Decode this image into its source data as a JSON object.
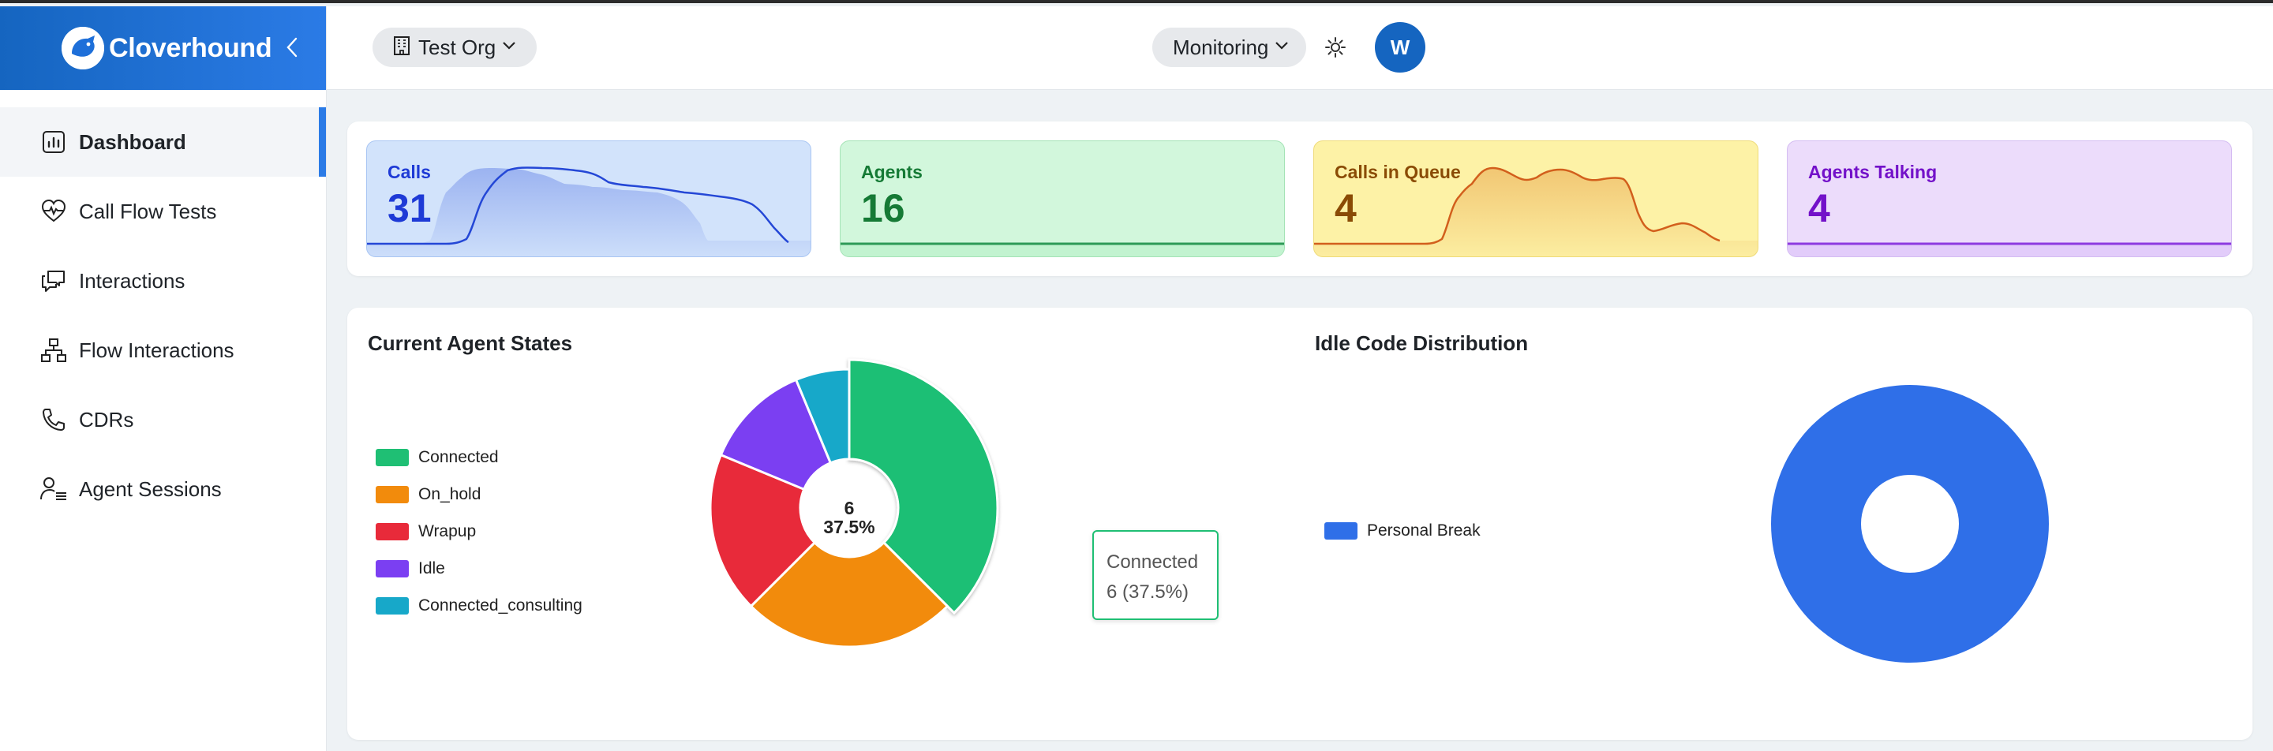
{
  "brand": {
    "name": "Cloverhound"
  },
  "sidebar": {
    "items": [
      {
        "label": "Dashboard",
        "icon": "bar-chart-icon",
        "active": true
      },
      {
        "label": "Call Flow Tests",
        "icon": "heart-pulse-icon"
      },
      {
        "label": "Interactions",
        "icon": "chat-bubbles-icon"
      },
      {
        "label": "Flow Interactions",
        "icon": "sitemap-icon"
      },
      {
        "label": "CDRs",
        "icon": "phone-icon"
      },
      {
        "label": "Agent Sessions",
        "icon": "user-list-icon"
      }
    ]
  },
  "header": {
    "org": {
      "label": "Test Org",
      "icon": "building-icon"
    },
    "view": {
      "label": "Monitoring"
    },
    "theme_icon": "sun-icon",
    "avatar": "W"
  },
  "stats": [
    {
      "label": "Calls",
      "value": "31",
      "color": "#1e3ad6",
      "line": "#2447d6"
    },
    {
      "label": "Agents",
      "value": "16",
      "color": "#157a35",
      "line": "#2e9a57"
    },
    {
      "label": "Calls in Queue",
      "value": "4",
      "color": "#8a4b05",
      "line": "#d25f1c"
    },
    {
      "label": "Agents Talking",
      "value": "4",
      "color": "#7311c9",
      "line": "#8d3be0"
    }
  ],
  "charts": {
    "agent_states": {
      "title": "Current Agent States",
      "center_value": "6",
      "center_pct": "37.5%",
      "tooltip": {
        "label": "Connected",
        "value": "6 (37.5%)"
      }
    },
    "idle_codes": {
      "title": "Idle Code Distribution"
    }
  },
  "chart_data": [
    {
      "type": "pie",
      "title": "Current Agent States",
      "categories": [
        "Connected",
        "On_hold",
        "Wrapup",
        "Idle",
        "Connected_consulting"
      ],
      "values": [
        6,
        4,
        3,
        2,
        1
      ],
      "colors": [
        "#1fbf74",
        "#f28b0c",
        "#e82a3a",
        "#7b3ff2",
        "#17a8c9"
      ],
      "legend": "left"
    },
    {
      "type": "pie",
      "title": "Idle Code Distribution",
      "categories": [
        "Personal Break"
      ],
      "values": [
        1
      ],
      "colors": [
        "#2f6fe8"
      ],
      "legend": "left"
    }
  ]
}
